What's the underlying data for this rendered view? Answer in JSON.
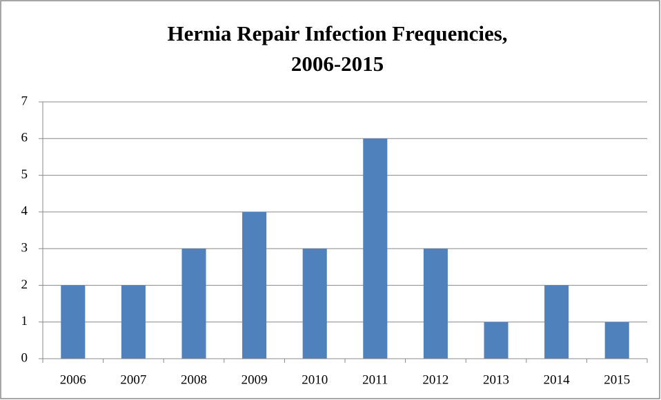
{
  "chart_data": {
    "type": "bar",
    "title": [
      "Hernia Repair Infection Frequencies,",
      "2006-2015"
    ],
    "categories": [
      "2006",
      "2007",
      "2008",
      "2009",
      "2010",
      "2011",
      "2012",
      "2013",
      "2014",
      "2015"
    ],
    "values": [
      2,
      2,
      3,
      4,
      3,
      6,
      3,
      1,
      2,
      1
    ],
    "color": "#4f81bd",
    "ylim": [
      0,
      7
    ],
    "yticks": [
      0,
      1,
      2,
      3,
      4,
      5,
      6,
      7
    ],
    "grid": true
  }
}
